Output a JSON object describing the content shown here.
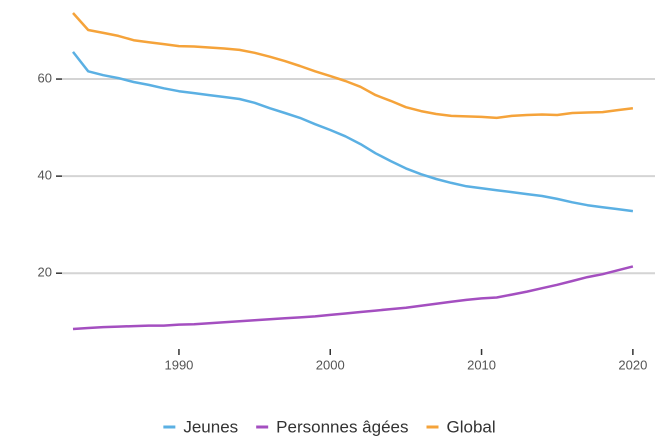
{
  "chart_data": {
    "type": "line",
    "x": [
      1983,
      1984,
      1985,
      1986,
      1987,
      1988,
      1989,
      1990,
      1991,
      1992,
      1993,
      1994,
      1995,
      1996,
      1997,
      1998,
      1999,
      2000,
      2001,
      2002,
      2003,
      2004,
      2005,
      2006,
      2007,
      2008,
      2009,
      2010,
      2011,
      2012,
      2013,
      2014,
      2015,
      2016,
      2017,
      2018,
      2019,
      2020
    ],
    "series": [
      {
        "name": "Jeunes",
        "color": "#5bb0e3",
        "values": [
          65.6,
          61.6,
          60.8,
          60.2,
          59.4,
          58.8,
          58.1,
          57.5,
          57.1,
          56.7,
          56.3,
          55.9,
          55.1,
          54.0,
          53.0,
          52.0,
          50.7,
          49.5,
          48.2,
          46.6,
          44.7,
          43.1,
          41.6,
          40.4,
          39.4,
          38.6,
          37.9,
          37.5,
          37.1,
          36.7,
          36.3,
          35.9,
          35.3,
          34.6,
          34.0,
          33.6,
          33.2,
          32.8
        ]
      },
      {
        "name": "Personnes âgées",
        "color": "#a44fc0",
        "values": [
          8.5,
          8.7,
          8.9,
          9.0,
          9.1,
          9.2,
          9.2,
          9.4,
          9.5,
          9.7,
          9.9,
          10.1,
          10.3,
          10.5,
          10.7,
          10.9,
          11.1,
          11.4,
          11.7,
          12.0,
          12.3,
          12.6,
          12.9,
          13.3,
          13.7,
          14.1,
          14.5,
          14.8,
          15.0,
          15.6,
          16.2,
          16.9,
          17.6,
          18.4,
          19.2,
          19.8,
          20.6,
          21.4
        ]
      },
      {
        "name": "Global",
        "color": "#f5a33a",
        "values": [
          73.6,
          70.1,
          69.5,
          68.9,
          68.0,
          67.6,
          67.2,
          66.8,
          66.7,
          66.5,
          66.3,
          66.0,
          65.4,
          64.6,
          63.7,
          62.7,
          61.6,
          60.6,
          59.6,
          58.4,
          56.7,
          55.5,
          54.2,
          53.4,
          52.8,
          52.4,
          52.3,
          52.2,
          52.0,
          52.4,
          52.6,
          52.7,
          52.6,
          53.0,
          53.1,
          53.2,
          53.6,
          54.0
        ]
      }
    ],
    "xlim": [
      1982,
      2021
    ],
    "xticks": [
      1990,
      2000,
      2010,
      2020
    ],
    "ylim": [
      5,
      76
    ],
    "yticks": [
      20,
      40,
      60
    ],
    "grid": true,
    "legend": "bottom"
  }
}
